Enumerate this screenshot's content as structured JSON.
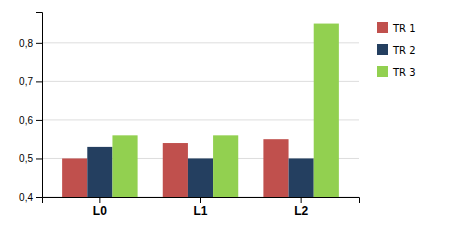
{
  "chart_data": {
    "type": "bar",
    "categories": [
      "L0",
      "L1",
      "L2"
    ],
    "series": [
      {
        "name": "TR 1",
        "color": "#C0504D",
        "values": [
          0.5,
          0.54,
          0.55
        ]
      },
      {
        "name": "TR 2",
        "color": "#243F60",
        "values": [
          0.53,
          0.5,
          0.5
        ]
      },
      {
        "name": "TR 3",
        "color": "#92D050",
        "values": [
          0.56,
          0.56,
          0.85
        ]
      }
    ],
    "ylim": [
      0.4,
      0.88
    ],
    "yticks": [
      {
        "value": 0.4,
        "label": "0,4"
      },
      {
        "value": 0.5,
        "label": "0,5"
      },
      {
        "value": 0.6,
        "label": "0,6"
      },
      {
        "value": 0.7,
        "label": "0,7"
      },
      {
        "value": 0.8,
        "label": "0,8"
      }
    ],
    "grid": true,
    "legend": "right"
  }
}
